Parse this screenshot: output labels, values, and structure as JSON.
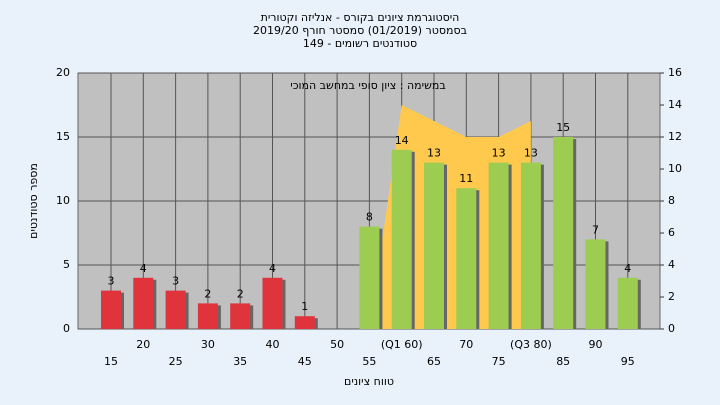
{
  "chart_data": {
    "type": "bar",
    "title": [
      "היסטוגרמת ציונים בקורס - אנליזה וקטורית",
      "בסמסטר  (01/2019)  סמסטר חורף 2019/20",
      "סטודנטים רשומים - 149"
    ],
    "annotation": "במשימה : ציון סופי במחשב המוכי",
    "x_label": "טווח ציונים",
    "y_label": "מספר סטודנטים",
    "categories": [
      "15",
      "20",
      "25",
      "30",
      "35",
      "40",
      "45",
      "50",
      "55",
      "(Q1 60)",
      "65",
      "70",
      "75",
      "(Q3 80)",
      "85",
      "90",
      "95"
    ],
    "series": [
      {
        "values": [
          3,
          4,
          3,
          2,
          2,
          4,
          1,
          null,
          8,
          14,
          13,
          11,
          13,
          13,
          15,
          7,
          4
        ],
        "colors": [
          "#e0343c",
          "#e0343c",
          "#e0343c",
          "#e0343c",
          "#e0343c",
          "#e0343c",
          "#e0343c",
          "#e0343c",
          "#9ccc50",
          "#9ccc50",
          "#9ccc50",
          "#9ccc50",
          "#9ccc50",
          "#9ccc50",
          "#9ccc50",
          "#9ccc50",
          "#9ccc50"
        ]
      },
      {
        "type": "area",
        "axis": "y2",
        "color": "#ffc94d",
        "values": [
          null,
          null,
          null,
          null,
          null,
          null,
          null,
          null,
          0,
          14,
          13,
          12,
          12,
          13,
          null,
          null,
          null
        ]
      }
    ],
    "ylim": [
      0,
      20
    ],
    "yticks": [
      0,
      5,
      10,
      15,
      20
    ],
    "y2lim": [
      0,
      16
    ],
    "y2ticks": [
      0,
      2,
      4,
      6,
      8,
      10,
      12,
      14,
      16
    ],
    "grid": true
  }
}
